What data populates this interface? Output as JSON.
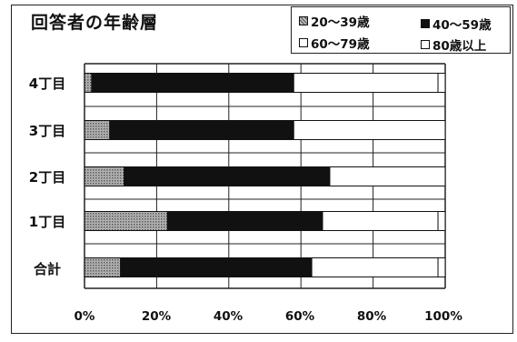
{
  "chart_data": {
    "type": "bar",
    "orientation": "horizontal",
    "stacked": true,
    "title": "回答者の年齢層",
    "categories": [
      "4丁目",
      "3丁目",
      "2丁目",
      "1丁目",
      "合計"
    ],
    "series": [
      {
        "name": "20～39歳",
        "color": "#9a9a9a",
        "pattern": "dotted-gray",
        "values": [
          2,
          7,
          11,
          23,
          10
        ]
      },
      {
        "name": "40～59歳",
        "color": "#111111",
        "pattern": "solid-black",
        "values": [
          56,
          51,
          57,
          43,
          53
        ]
      },
      {
        "name": "60～79歳",
        "color": "#ffffff",
        "pattern": "white",
        "values": [
          40,
          42,
          32,
          32,
          35
        ]
      },
      {
        "name": "80歳以上",
        "color": "#ffffff",
        "pattern": "white",
        "values": [
          2,
          0,
          0,
          2,
          2
        ]
      }
    ],
    "xlim": [
      0,
      100
    ],
    "xticks": [
      "0%",
      "20%",
      "40%",
      "60%",
      "80%",
      "100%"
    ],
    "grid": true,
    "legend_position": "top-right"
  }
}
